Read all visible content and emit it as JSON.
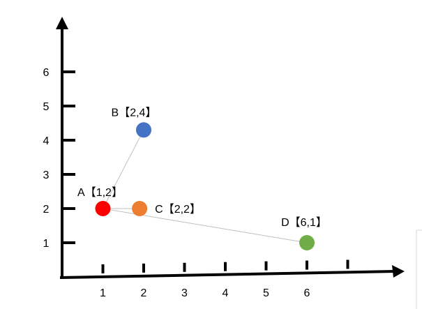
{
  "chart_data": {
    "type": "scatter",
    "title": "",
    "xlabel": "",
    "ylabel": "",
    "xlim": [
      0,
      7.5
    ],
    "ylim": [
      0,
      6.7
    ],
    "x_ticks": [
      1,
      2,
      3,
      4,
      5,
      6,
      7
    ],
    "y_ticks": [
      1,
      2,
      3,
      4,
      5,
      6
    ],
    "x_tick_labels": [
      "1",
      "2",
      "3",
      "4",
      "5",
      "6",
      ""
    ],
    "y_tick_labels": [
      "1",
      "2",
      "3",
      "4",
      "5",
      "6"
    ],
    "grid": false,
    "points": [
      {
        "name": "A",
        "label": "A【1,2】",
        "x": 1,
        "y": 2,
        "color": "#ff0000"
      },
      {
        "name": "B",
        "label": "B【2,4】",
        "x": 2,
        "y": 4.3,
        "color": "#4472c4"
      },
      {
        "name": "C",
        "label": "C【2,2】",
        "x": 1.9,
        "y": 2,
        "color": "#ed7d31"
      },
      {
        "name": "D",
        "label": "D【6,1】",
        "x": 6,
        "y": 1,
        "color": "#70ad47"
      }
    ],
    "edges": [
      [
        "A",
        "B"
      ],
      [
        "A",
        "C"
      ],
      [
        "A",
        "D"
      ]
    ]
  }
}
